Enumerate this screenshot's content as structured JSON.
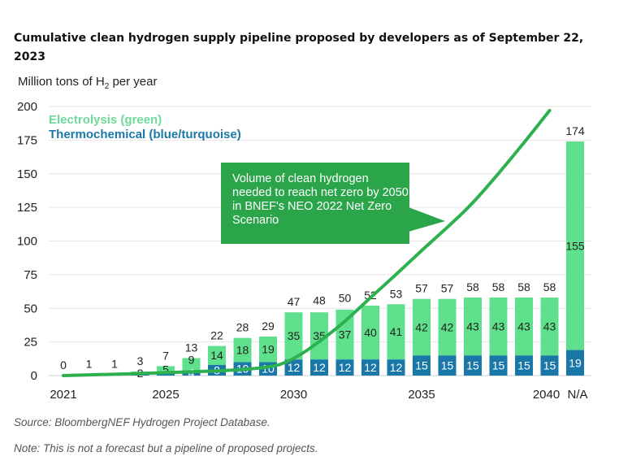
{
  "title": "Cumulative clean hydrogen supply pipeline proposed by developers as of September 22, 2023",
  "ylabel_main": "Million tons of H",
  "ylabel_sub": "2",
  "ylabel_rest": " per year",
  "annotation": "Volume of clean hydrogen needed to reach net zero by 2050 in BNEF's NEO 2022 Net Zero Scenario",
  "source": "Source: BloombergNEF Hydrogen Project Database.",
  "note": "Note: This is not a forecast but a pipeline of proposed projects.",
  "colors": {
    "electrolysis": "#5fe08c",
    "thermochemical": "#1a78a8",
    "line": "#2db14f",
    "electrolysis_text": "#6ed99a"
  },
  "chart_data": {
    "type": "bar",
    "stacked": true,
    "categories": [
      "2021",
      "2022",
      "2023",
      "2024",
      "2025",
      "2026",
      "2027",
      "2028",
      "2029",
      "2030",
      "2031",
      "2032",
      "2033",
      "2034",
      "2035",
      "2036",
      "2037",
      "2038",
      "2039",
      "2040",
      "N/A"
    ],
    "x_tick_labels": [
      "2021",
      "2025",
      "2030",
      "2035",
      "2040",
      "N/A"
    ],
    "series": [
      {
        "name": "Thermochemical (blue/turquoise)",
        "values": [
          0,
          0,
          0,
          1,
          2,
          4,
          8,
          10,
          10,
          12,
          12,
          12,
          12,
          12,
          15,
          15,
          15,
          15,
          15,
          15,
          19
        ]
      },
      {
        "name": "Electrolysis (green)",
        "values": [
          0,
          1,
          1,
          2,
          5,
          9,
          14,
          18,
          19,
          35,
          35,
          37,
          40,
          41,
          42,
          42,
          43,
          43,
          43,
          43,
          155
        ]
      }
    ],
    "totals": [
      0,
      1,
      1,
      3,
      7,
      13,
      22,
      28,
      29,
      47,
      48,
      50,
      52,
      53,
      57,
      57,
      58,
      58,
      58,
      58,
      174
    ],
    "net_zero_line": {
      "x": [
        "2021",
        "2025",
        "2029",
        "2030",
        "2031",
        "2032",
        "2033",
        "2034",
        "2035",
        "2036",
        "2037",
        "2038",
        "2039",
        "2040"
      ],
      "y": [
        0,
        2,
        5,
        12,
        25,
        40,
        58,
        75,
        93,
        110,
        128,
        150,
        173,
        197
      ]
    },
    "ylim": [
      0,
      200
    ],
    "yticks": [
      0,
      25,
      50,
      75,
      100,
      125,
      150,
      175,
      200
    ],
    "grid": true,
    "legend": "top-left"
  }
}
